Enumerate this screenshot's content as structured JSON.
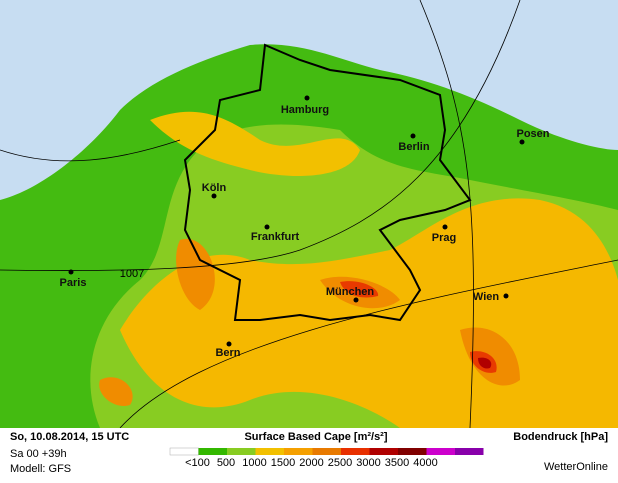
{
  "map": {
    "isobar_label": "1007",
    "cities": [
      "Hamburg",
      "Berlin",
      "Posen",
      "Köln",
      "Frankfurt",
      "Prag",
      "Paris",
      "München",
      "Wien",
      "Bern"
    ]
  },
  "footer": {
    "datetime": "So, 10.08.2014, 15 UTC",
    "run": "Sa 00 +39h",
    "model": "Modell: GFS",
    "legend_title": "Surface Based Cape [m²/s²]",
    "legend_labels": [
      "<100",
      "500",
      "1000",
      "1500",
      "2000",
      "2500",
      "3000",
      "3500",
      "4000"
    ],
    "pressure": "Bodendruck [hPa]",
    "brand": "WetterOnline"
  }
}
